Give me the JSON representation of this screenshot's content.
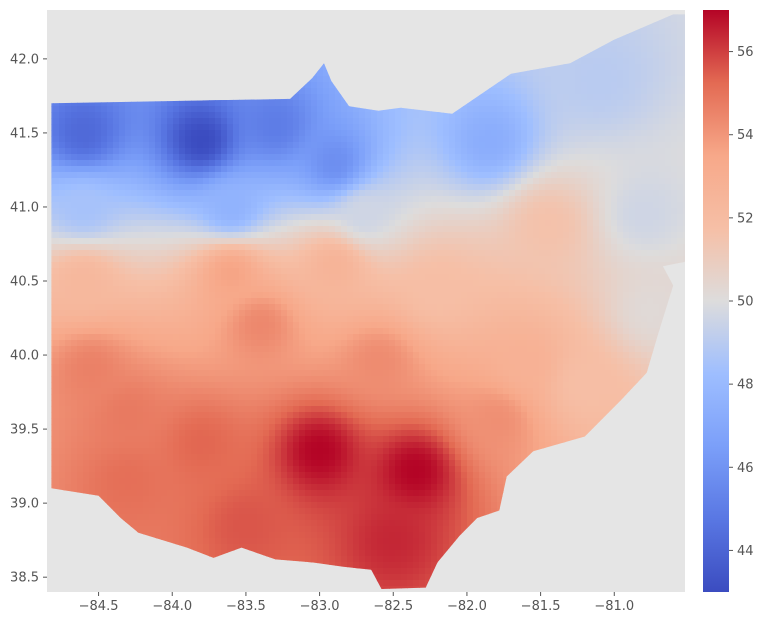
{
  "chart_data": {
    "type": "heatmap",
    "subtype": "interpolated-choropleth-map",
    "title": "",
    "xlabel": "",
    "ylabel": "",
    "xlim": [
      -84.85,
      -80.52
    ],
    "ylim": [
      38.4,
      42.33
    ],
    "x_ticks": [
      -84.5,
      -84.0,
      -83.5,
      -83.0,
      -82.5,
      -82.0,
      -81.5,
      -81.0
    ],
    "x_tick_labels": [
      "−84.5",
      "−84.0",
      "−83.5",
      "−83.0",
      "−82.5",
      "−82.0",
      "−81.5",
      "−81.0"
    ],
    "y_ticks": [
      38.5,
      39.0,
      39.5,
      40.0,
      40.5,
      41.0,
      41.5,
      42.0
    ],
    "y_tick_labels": [
      "38.5",
      "39.0",
      "39.5",
      "40.0",
      "40.5",
      "41.0",
      "41.5",
      "42.0"
    ],
    "background_color": "#e5e5e5",
    "grid": false,
    "colormap": "coolwarm",
    "colorbar": {
      "vmin": 43,
      "vmax": 57,
      "ticks": [
        44,
        46,
        48,
        50,
        52,
        54,
        56
      ],
      "tick_labels": [
        "44",
        "46",
        "48",
        "50",
        "52",
        "54",
        "56"
      ],
      "position": "right"
    },
    "region_outline": [
      [
        -84.82,
        41.7
      ],
      [
        -83.2,
        41.73
      ],
      [
        -83.05,
        41.87
      ],
      [
        -82.97,
        41.97
      ],
      [
        -82.92,
        41.85
      ],
      [
        -82.8,
        41.68
      ],
      [
        -82.6,
        41.65
      ],
      [
        -82.45,
        41.67
      ],
      [
        -82.1,
        41.63
      ],
      [
        -81.7,
        41.9
      ],
      [
        -81.3,
        41.97
      ],
      [
        -81.0,
        42.13
      ],
      [
        -80.6,
        42.3
      ],
      [
        -80.52,
        42.3
      ],
      [
        -80.52,
        40.63
      ],
      [
        -80.67,
        40.6
      ],
      [
        -80.6,
        40.47
      ],
      [
        -80.7,
        40.15
      ],
      [
        -80.78,
        39.88
      ],
      [
        -80.95,
        39.7
      ],
      [
        -81.2,
        39.45
      ],
      [
        -81.55,
        39.35
      ],
      [
        -81.73,
        39.18
      ],
      [
        -81.78,
        38.95
      ],
      [
        -81.93,
        38.9
      ],
      [
        -82.05,
        38.78
      ],
      [
        -82.2,
        38.6
      ],
      [
        -82.28,
        38.43
      ],
      [
        -82.58,
        38.42
      ],
      [
        -82.65,
        38.55
      ],
      [
        -82.84,
        38.57
      ],
      [
        -83.05,
        38.6
      ],
      [
        -83.3,
        38.62
      ],
      [
        -83.53,
        38.7
      ],
      [
        -83.72,
        38.63
      ],
      [
        -83.9,
        38.7
      ],
      [
        -84.23,
        38.8
      ],
      [
        -84.35,
        38.9
      ],
      [
        -84.5,
        39.05
      ],
      [
        -84.82,
        39.1
      ]
    ],
    "stations": [
      {
        "lon": -83.8,
        "lat": 41.45,
        "value": 43.0
      },
      {
        "lon": -84.6,
        "lat": 41.5,
        "value": 44.2
      },
      {
        "lon": -83.3,
        "lat": 41.55,
        "value": 45.0
      },
      {
        "lon": -82.9,
        "lat": 41.3,
        "value": 45.8
      },
      {
        "lon": -81.85,
        "lat": 41.45,
        "value": 47.3
      },
      {
        "lon": -81.1,
        "lat": 41.85,
        "value": 49.0
      },
      {
        "lon": -84.6,
        "lat": 41.0,
        "value": 48.5
      },
      {
        "lon": -83.6,
        "lat": 41.0,
        "value": 47.6
      },
      {
        "lon": -82.7,
        "lat": 40.95,
        "value": 49.6
      },
      {
        "lon": -81.45,
        "lat": 40.88,
        "value": 51.6
      },
      {
        "lon": -80.8,
        "lat": 40.95,
        "value": 49.6
      },
      {
        "lon": -80.75,
        "lat": 40.3,
        "value": 50.2
      },
      {
        "lon": -84.6,
        "lat": 40.5,
        "value": 52.3
      },
      {
        "lon": -83.6,
        "lat": 40.55,
        "value": 53.6
      },
      {
        "lon": -82.9,
        "lat": 40.6,
        "value": 52.6
      },
      {
        "lon": -82.2,
        "lat": 40.45,
        "value": 51.8
      },
      {
        "lon": -83.4,
        "lat": 40.2,
        "value": 54.4
      },
      {
        "lon": -82.6,
        "lat": 39.95,
        "value": 54.3
      },
      {
        "lon": -81.6,
        "lat": 39.95,
        "value": 52.8
      },
      {
        "lon": -81.2,
        "lat": 39.8,
        "value": 51.8
      },
      {
        "lon": -81.8,
        "lat": 39.55,
        "value": 54.2
      },
      {
        "lon": -84.3,
        "lat": 39.6,
        "value": 54.8
      },
      {
        "lon": -83.8,
        "lat": 39.4,
        "value": 55.3
      },
      {
        "lon": -84.55,
        "lat": 39.9,
        "value": 54.6
      },
      {
        "lon": -83.0,
        "lat": 39.35,
        "value": 57.0
      },
      {
        "lon": -82.35,
        "lat": 39.22,
        "value": 57.0
      },
      {
        "lon": -82.5,
        "lat": 38.75,
        "value": 56.4
      },
      {
        "lon": -83.5,
        "lat": 38.85,
        "value": 55.6
      },
      {
        "lon": -84.3,
        "lat": 39.15,
        "value": 55.1
      }
    ]
  }
}
